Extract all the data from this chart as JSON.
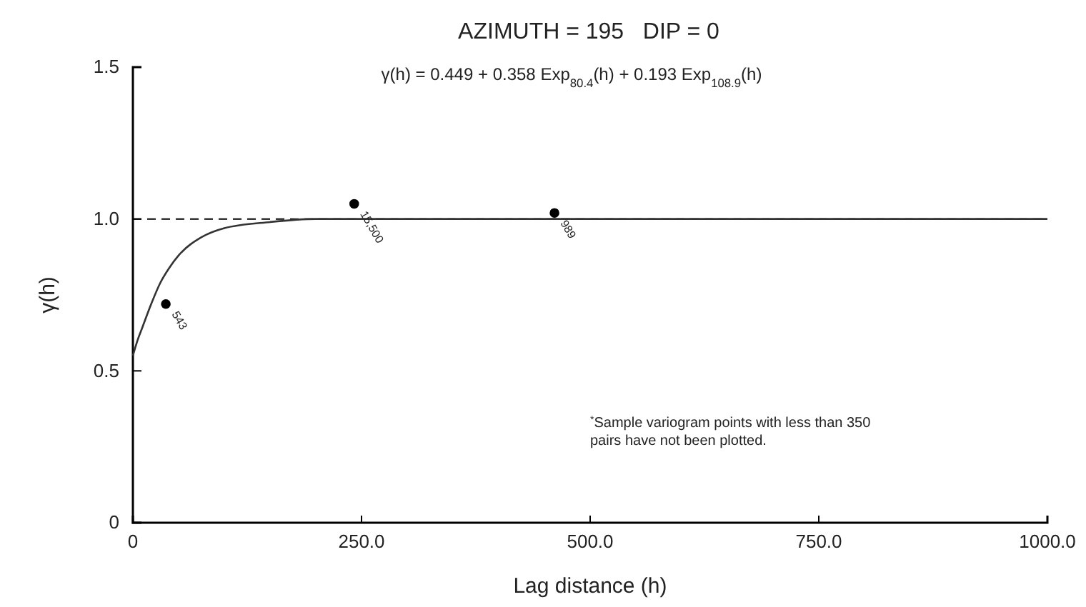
{
  "chart_data": {
    "type": "scatter",
    "title": "AZIMUTH = 195   DIP = 0",
    "subtitle": "γ(h) = 0.449 + 0.358 Exp$_{80.4}$(h) + 0.193 Exp$_{108.9}$(h)",
    "xlabel": "Lag distance (h)",
    "ylabel": "γ(h)",
    "xlim": [
      0,
      1000
    ],
    "ylim": [
      0,
      1.5
    ],
    "xticks": [
      0,
      {
        "value": 250,
        "label": "250.0"
      },
      {
        "value": 500,
        "label": "500.0"
      },
      {
        "value": 750,
        "label": "750.0"
      },
      {
        "value": 1000,
        "label": "1000.0"
      }
    ],
    "yticks": [
      0,
      0.5,
      {
        "value": 1,
        "label": "1.0"
      },
      1.5
    ],
    "series": [
      {
        "color": "#000000",
        "x": [
          36,
          242,
          461
        ],
        "values": [
          0.72,
          1.05,
          1.02
        ],
        "marker": "circle"
      },
      {
        "type": "line",
        "color": "#333333",
        "x": [
          0,
          5,
          10,
          20,
          30,
          40,
          50,
          75,
          100,
          150,
          200,
          250,
          500,
          1000
        ],
        "values": [
          0.55,
          0.6,
          0.64,
          0.72,
          0.79,
          0.84,
          0.88,
          0.94,
          0.97,
          0.99,
          1.0,
          1.0,
          1.0,
          1.0
        ],
        "marker": "none",
        "line_style": "solid"
      }
    ],
    "ref_lines": [
      {
        "axis": "y",
        "value": 1,
        "label": null,
        "color": "#000000",
        "line_style": "dashed"
      }
    ],
    "annotations": [
      "$^{*}$Sample variogram points with less than 350 pairs have not been plotted.",
      {
        "text": "543",
        "x": 36,
        "y": 0.72
      },
      {
        "text": "15,500",
        "x": 242,
        "y": 1.05
      },
      {
        "text": "989",
        "x": 461,
        "y": 1.02
      }
    ],
    "grid": false
  }
}
